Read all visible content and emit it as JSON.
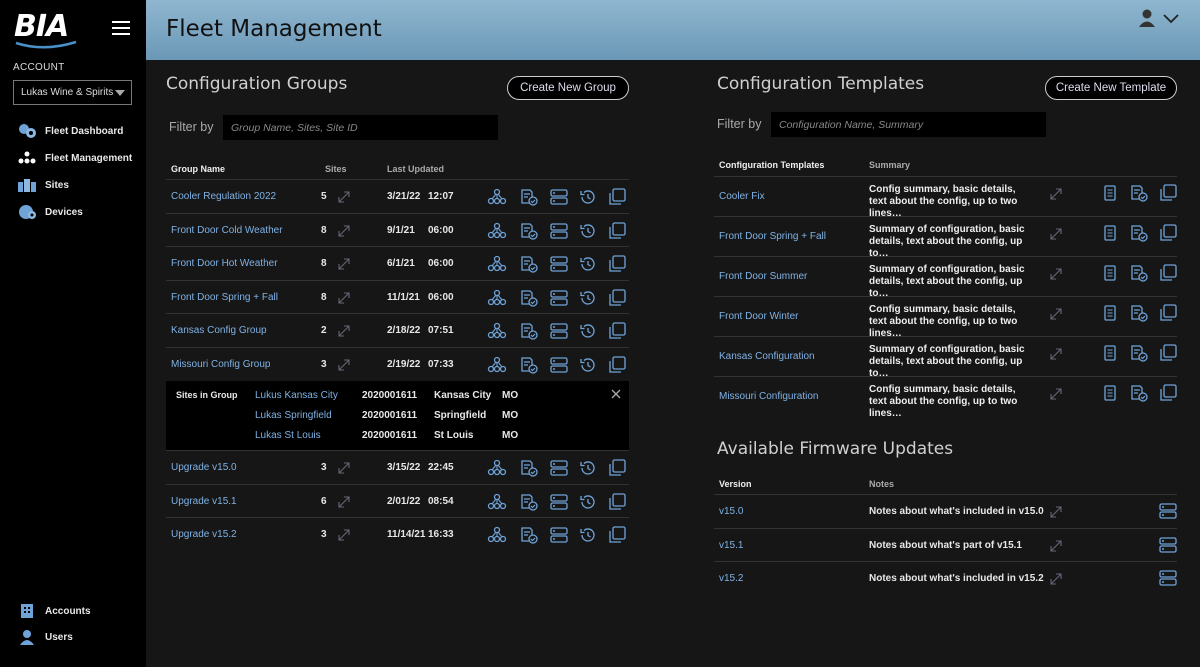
{
  "sidebar": {
    "logo": "BIA",
    "account_label": "ACCOUNT",
    "account_value": "Lukas Wine & Spirits",
    "nav": [
      {
        "label": "Fleet Dashboard",
        "icon": "fleet-dashboard-icon"
      },
      {
        "label": "Fleet Management",
        "icon": "fleet-management-icon"
      },
      {
        "label": "Sites",
        "icon": "sites-icon"
      },
      {
        "label": "Devices",
        "icon": "devices-icon"
      }
    ],
    "bottom_nav": [
      {
        "label": "Accounts",
        "icon": "accounts-icon"
      },
      {
        "label": "Users",
        "icon": "users-icon"
      }
    ]
  },
  "header": {
    "title": "Fleet Management"
  },
  "groups": {
    "title": "Configuration Groups",
    "create_label": "Create New Group",
    "filter_label": "Filter by",
    "filter_placeholder": "Group Name, Sites, Site ID",
    "columns": {
      "name": "Group Name",
      "sites": "Sites",
      "updated": "Last Updated"
    },
    "rows": [
      {
        "name": "Cooler Regulation 2022",
        "sites": "5",
        "date": "3/21/22",
        "time": "12:07"
      },
      {
        "name": "Front Door Cold Weather",
        "sites": "8",
        "date": "9/1/21",
        "time": "06:00"
      },
      {
        "name": "Front Door Hot Weather",
        "sites": "8",
        "date": "6/1/21",
        "time": "06:00"
      },
      {
        "name": "Front Door Spring + Fall",
        "sites": "8",
        "date": "11/1/21",
        "time": "06:00"
      },
      {
        "name": "Kansas Config Group",
        "sites": "2",
        "date": "2/18/22",
        "time": "07:51"
      },
      {
        "name": "Missouri Config Group",
        "sites": "3",
        "date": "2/19/22",
        "time": "07:33"
      }
    ],
    "expanded": {
      "label": "Sites in Group",
      "sites": [
        {
          "name": "Lukus Kansas City",
          "id": "2020001611",
          "city": "Kansas City",
          "state": "MO"
        },
        {
          "name": "Lukas Springfield",
          "id": "2020001611",
          "city": "Springfield",
          "state": "MO"
        },
        {
          "name": "Lukas St Louis",
          "id": "2020001611",
          "city": "St Louis",
          "state": "MO"
        }
      ]
    },
    "rows_after": [
      {
        "name": "Upgrade v15.0",
        "sites": "3",
        "date": "3/15/22",
        "time": "22:45"
      },
      {
        "name": "Upgrade v15.1",
        "sites": "6",
        "date": "2/01/22",
        "time": "08:54"
      },
      {
        "name": "Upgrade v15.2",
        "sites": "3",
        "date": "11/14/21",
        "time": "16:33"
      }
    ]
  },
  "templates": {
    "title": "Configuration Templates",
    "create_label": "Create New Template",
    "filter_label": "Filter by",
    "filter_placeholder": "Configuration Name, Summary",
    "columns": {
      "name": "Configuration Templates",
      "summary": "Summary"
    },
    "rows": [
      {
        "name": "Cooler Fix",
        "summary": "Config summary, basic details, text about the config, up to two lines…"
      },
      {
        "name": "Front Door Spring + Fall",
        "summary": "Summary of configuration, basic details, text about the config, up to…"
      },
      {
        "name": "Front Door Summer",
        "summary": "Summary of configuration, basic details, text about the config, up to…"
      },
      {
        "name": "Front Door Winter",
        "summary": "Config summary, basic details, text about the config, up to two lines…"
      },
      {
        "name": "Kansas Configuration",
        "summary": "Summary of configuration, basic details, text about the config, up to…"
      },
      {
        "name": "Missouri Configuration",
        "summary": "Config summary, basic details, text about the config, up to two lines…"
      }
    ]
  },
  "firmware": {
    "title": "Available Firmware Updates",
    "columns": {
      "version": "Version",
      "notes": "Notes"
    },
    "rows": [
      {
        "version": "v15.0",
        "notes": "Notes about what's included in v15.0"
      },
      {
        "version": "v15.1",
        "notes": "Notes about what's part of v15.1"
      },
      {
        "version": "v15.2",
        "notes": "Notes about what's included in v15.2"
      }
    ]
  }
}
